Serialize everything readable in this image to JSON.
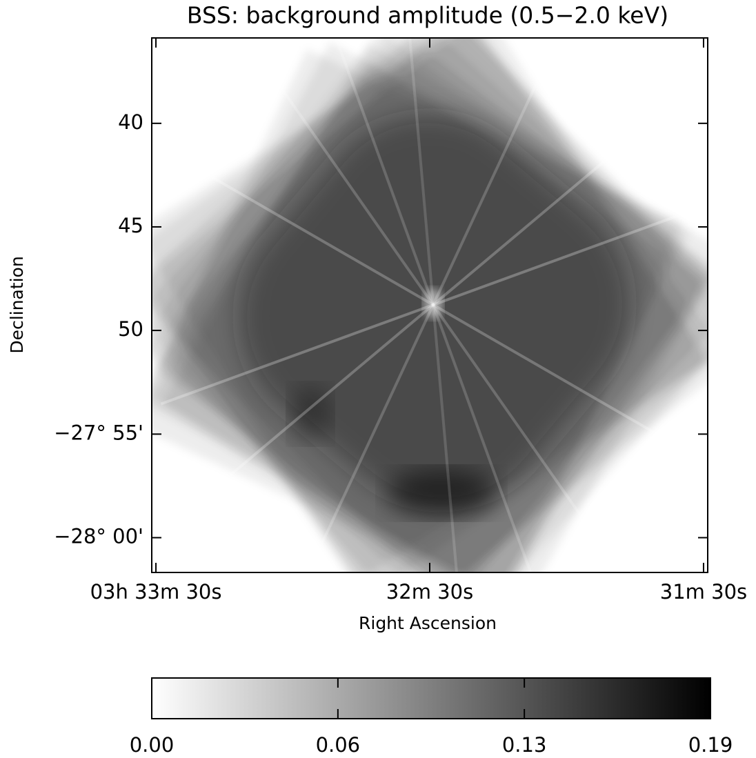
{
  "chart_data": {
    "type": "image",
    "title": "BSS: background amplitude (0.5−2.0 keV)",
    "x_label": "Right Ascension",
    "y_label": "Declination",
    "xlim": [
      53.3788,
      52.8712
    ],
    "ylim": [
      -28.028,
      -27.598
    ],
    "xticks": [
      {
        "value": 53.375,
        "label": "03h 33m 30s"
      },
      {
        "value": 53.125,
        "label": "32m 30s"
      },
      {
        "value": 52.875,
        "label": "31m 30s"
      }
    ],
    "yticks": [
      {
        "value": -27.6667,
        "label": "40"
      },
      {
        "value": -27.75,
        "label": "45"
      },
      {
        "value": -27.8333,
        "label": "50"
      },
      {
        "value": -27.9167,
        "label": "−27° 55'"
      },
      {
        "value": -28.0,
        "label": "−28° 00'"
      }
    ],
    "colorbar": {
      "lim": [
        0,
        0.19
      ],
      "ticks": [
        {
          "value": 0,
          "label": "0.00"
        },
        {
          "value": 0.0633,
          "label": "0.06"
        },
        {
          "value": 0.1267,
          "label": "0.13"
        },
        {
          "value": 0.19,
          "label": "0.19"
        }
      ]
    }
  }
}
